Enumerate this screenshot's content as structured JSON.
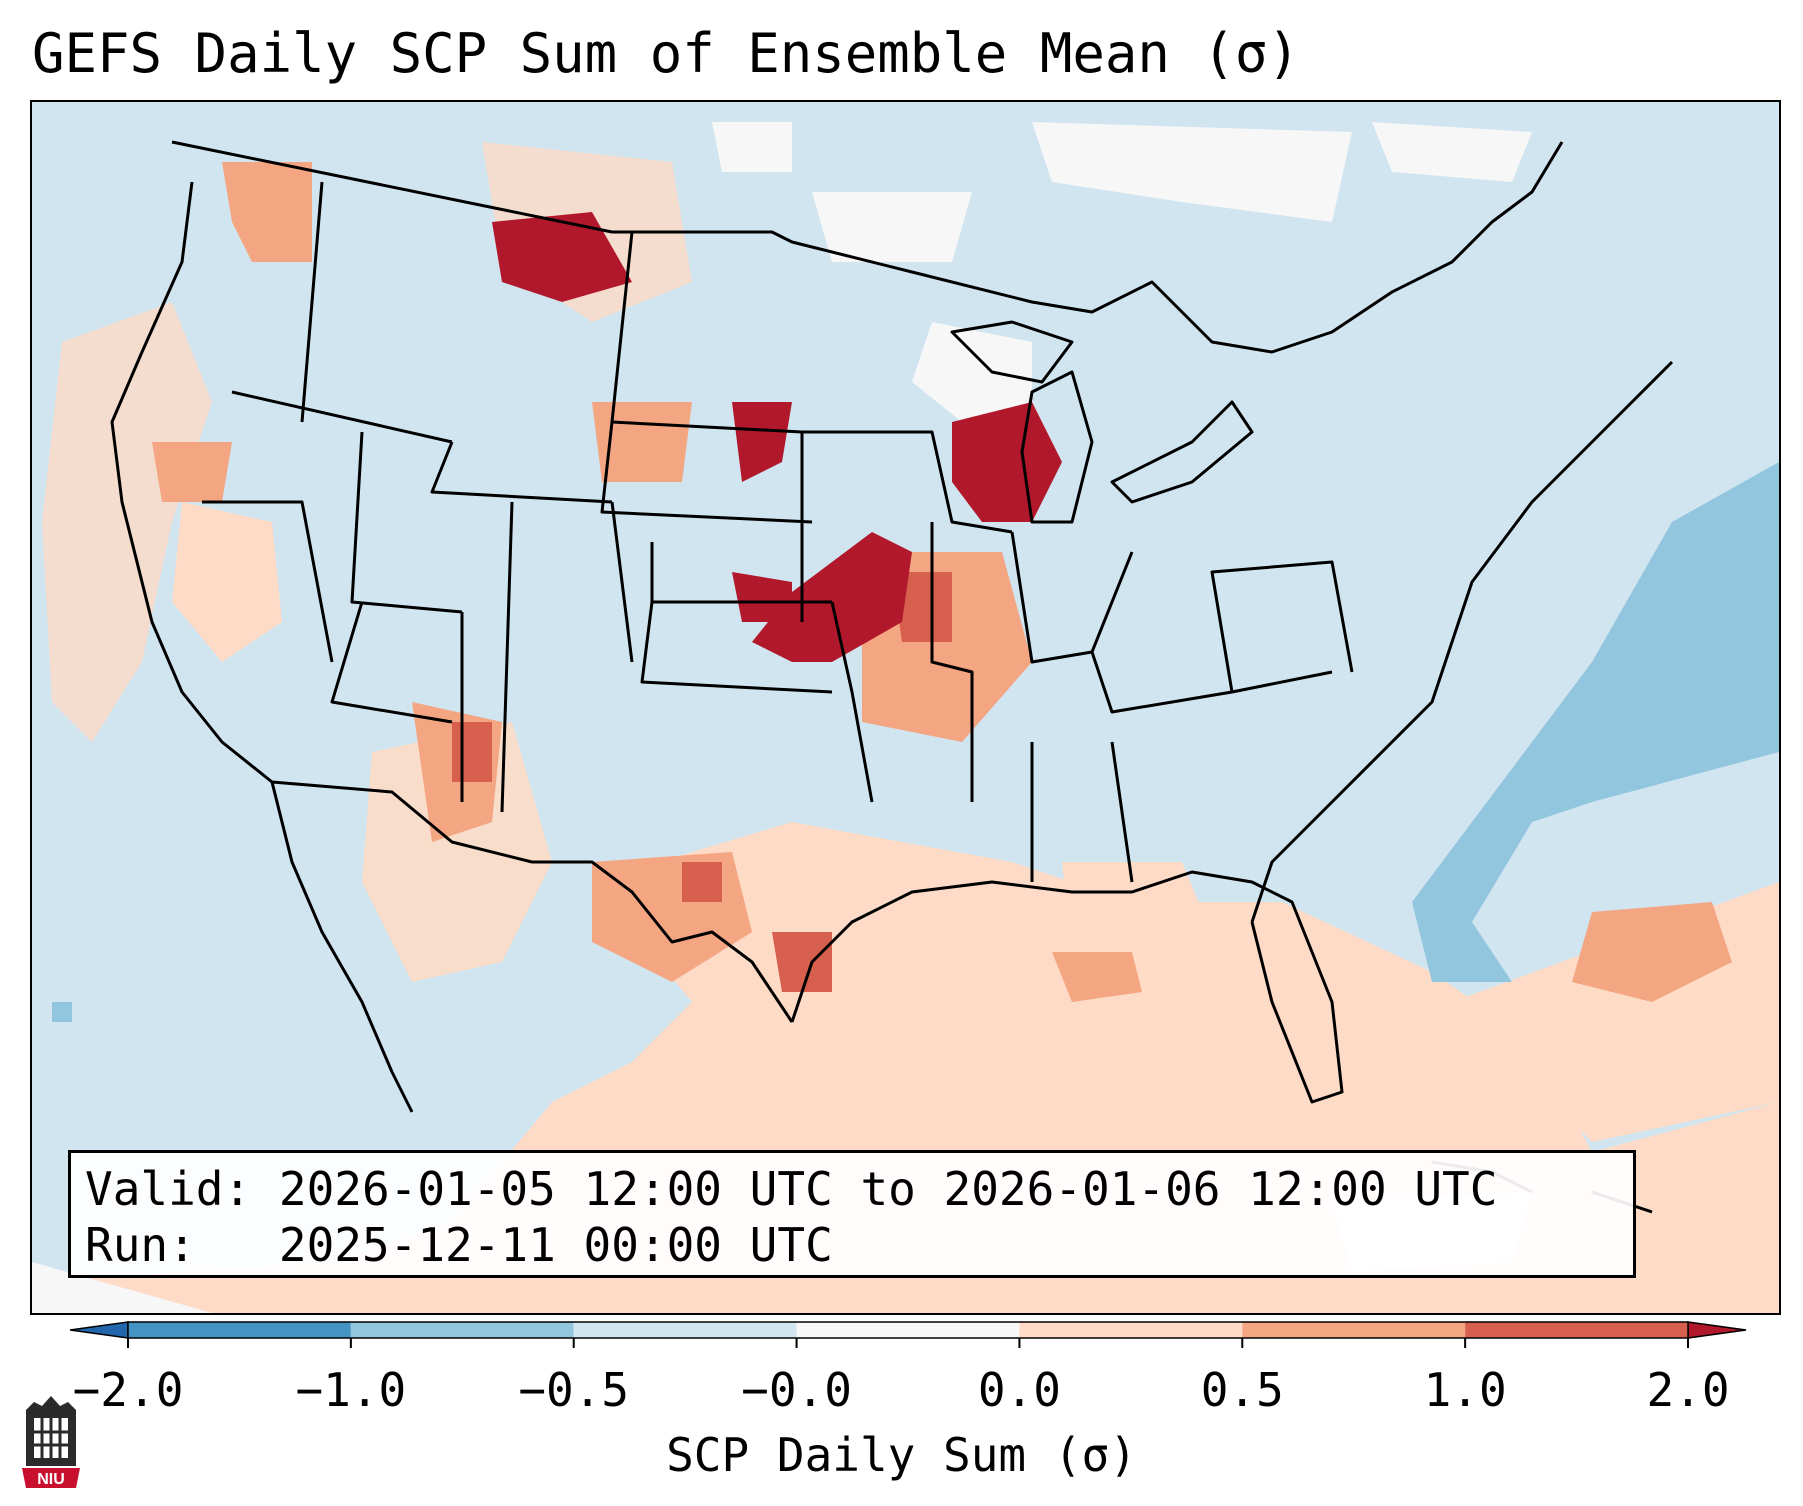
{
  "title": "GEFS Daily SCP Sum of Ensemble Mean (σ)",
  "info": {
    "valid_label": "Valid:",
    "valid_value": "2026-01-05 12:00 UTC to 2026-01-06 12:00 UTC",
    "run_label": "Run:",
    "run_value": "2025-12-11 00:00 UTC"
  },
  "colorbar": {
    "label": "SCP Daily Sum (σ)",
    "ticks": [
      "−2.0",
      "−1.0",
      "−0.5",
      "−0.0",
      "0.0",
      "0.5",
      "1.0",
      "2.0"
    ],
    "colors": [
      "#4393c3",
      "#92c5de",
      "#d1e5f0",
      "#f7f7f7",
      "#fddbc7",
      "#f4a582",
      "#d6604d"
    ],
    "extend_low_color": "#2166ac",
    "extend_high_color": "#b2182b"
  },
  "map": {
    "ocean_color": "#d1e5f0",
    "land_color": "#d1e5f0",
    "border_color": "#000000"
  },
  "logo": {
    "text": "NIU"
  }
}
